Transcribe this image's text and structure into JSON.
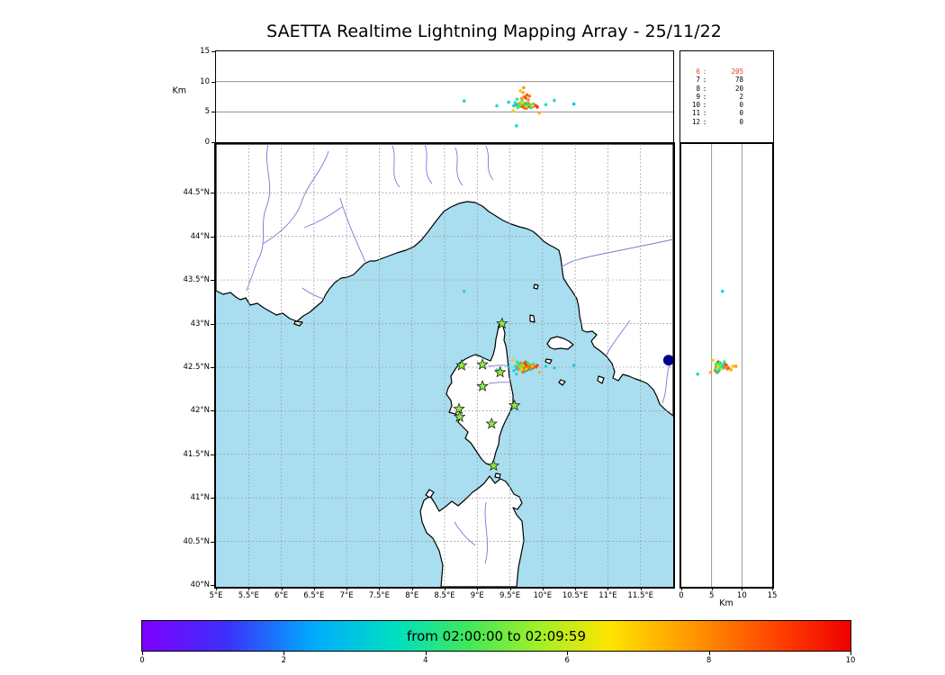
{
  "title": "SAETTA Realtime Lightning Mapping Array - 25/11/22",
  "labels": {
    "altitude_unit": "Km"
  },
  "colors": {
    "sea": "#a9def0",
    "land": "#ffffff",
    "coast": "#000000",
    "river": "#7878d2",
    "grid": "#9a9a9a",
    "alt_grid": "#808080",
    "station_fill": "#8ef03a",
    "station_stroke": "#222222",
    "lake": "#00008b",
    "highlight_red": "#e8402a"
  },
  "chart_data": {
    "type": "scatter",
    "title": "SAETTA Realtime Lightning Mapping Array - 25/11/22",
    "map": {
      "lon_range": [
        5.0,
        12.0
      ],
      "lat_range": [
        39.98,
        45.06
      ],
      "x_ticks": [
        {
          "v": 5,
          "label": "5°E"
        },
        {
          "v": 5.5,
          "label": "5.5°E"
        },
        {
          "v": 6,
          "label": "6°E"
        },
        {
          "v": 6.5,
          "label": "6.5°E"
        },
        {
          "v": 7,
          "label": "7°E"
        },
        {
          "v": 7.5,
          "label": "7.5°E"
        },
        {
          "v": 8,
          "label": "8°E"
        },
        {
          "v": 8.5,
          "label": "8.5°E"
        },
        {
          "v": 9,
          "label": "9°E"
        },
        {
          "v": 9.5,
          "label": "9.5°E"
        },
        {
          "v": 10,
          "label": "10°E"
        },
        {
          "v": 10.5,
          "label": "10.5°E"
        },
        {
          "v": 11,
          "label": "11°E"
        },
        {
          "v": 11.5,
          "label": "11.5°E"
        }
      ],
      "y_ticks": [
        {
          "v": 40,
          "label": "40°N"
        },
        {
          "v": 40.5,
          "label": "40.5°N"
        },
        {
          "v": 41,
          "label": "41°N"
        },
        {
          "v": 41.5,
          "label": "41.5°N"
        },
        {
          "v": 42,
          "label": "42°N"
        },
        {
          "v": 42.5,
          "label": "42.5°N"
        },
        {
          "v": 43,
          "label": "43°N"
        },
        {
          "v": 43.5,
          "label": "43.5°N"
        },
        {
          "v": 44,
          "label": "44°N"
        },
        {
          "v": 44.5,
          "label": "44.5°N"
        }
      ],
      "grid_lons": [
        5.5,
        6,
        6.5,
        7,
        7.5,
        8,
        8.5,
        9,
        9.5,
        10,
        10.5,
        11,
        11.5
      ],
      "grid_lats": [
        40.5,
        41,
        41.5,
        42,
        42.5,
        43,
        43.5,
        44,
        44.5
      ]
    },
    "alt_range": [
      0,
      15
    ],
    "alt_ticks": [
      0,
      5,
      10,
      15
    ],
    "alt_gridlines": [
      5,
      10
    ],
    "stations": [
      [
        9.38,
        43.0
      ],
      [
        8.76,
        42.52
      ],
      [
        9.08,
        42.53
      ],
      [
        9.35,
        42.44
      ],
      [
        9.08,
        42.28
      ],
      [
        8.72,
        42.02
      ],
      [
        9.57,
        42.06
      ],
      [
        9.22,
        41.85
      ],
      [
        8.73,
        41.93
      ],
      [
        9.25,
        41.37
      ]
    ],
    "lake": {
      "lon": 11.93,
      "lat": 42.58
    },
    "points": [
      [
        9.62,
        42.5,
        5.8,
        8.2
      ],
      [
        9.64,
        42.52,
        6.0,
        8.5
      ],
      [
        9.66,
        42.49,
        6.2,
        8.8
      ],
      [
        9.68,
        42.51,
        5.9,
        9.0
      ],
      [
        9.7,
        42.5,
        6.1,
        8.4
      ],
      [
        9.71,
        42.53,
        6.3,
        8.9
      ],
      [
        9.72,
        42.48,
        5.7,
        9.2
      ],
      [
        9.73,
        42.51,
        6.0,
        8.1
      ],
      [
        9.74,
        42.49,
        6.4,
        8.7
      ],
      [
        9.75,
        42.52,
        6.1,
        9.4
      ],
      [
        9.76,
        42.5,
        5.8,
        8.3
      ],
      [
        9.77,
        42.47,
        6.2,
        8.9
      ],
      [
        9.78,
        42.51,
        6.0,
        9.1
      ],
      [
        9.79,
        42.49,
        6.3,
        8.6
      ],
      [
        9.8,
        42.52,
        5.9,
        9.3
      ],
      [
        9.66,
        42.53,
        6.5,
        7.8
      ],
      [
        9.69,
        42.46,
        6.1,
        8.0
      ],
      [
        9.72,
        42.54,
        6.2,
        9.5
      ],
      [
        9.75,
        42.46,
        5.6,
        8.8
      ],
      [
        9.78,
        42.54,
        6.4,
        9.0
      ],
      [
        9.81,
        42.5,
        6.0,
        8.5
      ],
      [
        9.83,
        42.52,
        6.1,
        8.9
      ],
      [
        9.85,
        42.49,
        5.9,
        9.2
      ],
      [
        9.87,
        42.51,
        6.2,
        8.7
      ],
      [
        9.9,
        42.5,
        6.0,
        9.0
      ],
      [
        9.92,
        42.52,
        5.8,
        9.3
      ],
      [
        9.63,
        42.47,
        6.3,
        7.9
      ],
      [
        9.67,
        42.55,
        6.0,
        8.2
      ],
      [
        9.7,
        42.44,
        5.9,
        8.6
      ],
      [
        9.74,
        42.56,
        6.1,
        9.1
      ],
      [
        9.68,
        42.5,
        7.2,
        8.0
      ],
      [
        9.72,
        42.52,
        7.5,
        8.4
      ],
      [
        9.76,
        42.49,
        7.8,
        8.8
      ],
      [
        9.7,
        42.47,
        8.2,
        7.6
      ],
      [
        9.74,
        42.53,
        7.3,
        9.0
      ],
      [
        9.78,
        42.5,
        7.0,
        8.2
      ],
      [
        9.66,
        42.51,
        8.5,
        7.2
      ],
      [
        9.8,
        42.48,
        7.6,
        8.5
      ],
      [
        9.71,
        42.51,
        9.0,
        7.9
      ],
      [
        9.6,
        42.48,
        6.2,
        3.0
      ],
      [
        9.64,
        42.54,
        5.9,
        3.4
      ],
      [
        9.58,
        42.51,
        6.5,
        3.8
      ],
      [
        9.69,
        42.53,
        6.8,
        4.0
      ],
      [
        9.73,
        42.45,
        6.1,
        3.2
      ],
      [
        9.77,
        42.55,
        6.4,
        4.1
      ],
      [
        9.82,
        42.47,
        5.7,
        3.6
      ],
      [
        9.56,
        42.46,
        6.0,
        2.9
      ],
      [
        9.61,
        42.56,
        7.1,
        3.9
      ],
      [
        9.86,
        42.54,
        6.3,
        4.2
      ],
      [
        9.48,
        42.5,
        6.6,
        3.1
      ],
      [
        10.05,
        42.51,
        6.2,
        3.5
      ],
      [
        10.18,
        42.49,
        6.9,
        3.3
      ],
      [
        10.48,
        42.52,
        6.3,
        2.8
      ],
      [
        9.3,
        42.47,
        6.0,
        3.6
      ],
      [
        9.65,
        42.5,
        6.1,
        5.0
      ],
      [
        9.7,
        42.52,
        6.4,
        5.5
      ],
      [
        9.75,
        42.48,
        5.9,
        6.0
      ],
      [
        9.79,
        42.53,
        6.2,
        4.7
      ],
      [
        9.68,
        42.48,
        6.6,
        5.8
      ],
      [
        9.84,
        42.51,
        6.0,
        6.2
      ],
      [
        9.62,
        42.53,
        5.7,
        4.9
      ],
      [
        9.6,
        42.42,
        2.7,
        3.4
      ],
      [
        8.8,
        43.37,
        6.8,
        3.2
      ],
      [
        9.95,
        42.44,
        4.8,
        7.5
      ],
      [
        9.55,
        42.58,
        5.2,
        7.0
      ]
    ],
    "histogram": {
      "rows": [
        {
          "alt": "6",
          "count": "205",
          "highlight": true
        },
        {
          "alt": "7",
          "count": "78",
          "highlight": false
        },
        {
          "alt": "8",
          "count": "20",
          "highlight": false
        },
        {
          "alt": "9",
          "count": "2",
          "highlight": false
        },
        {
          "alt": "10",
          "count": "0",
          "highlight": false
        },
        {
          "alt": "11",
          "count": "0",
          "highlight": false
        },
        {
          "alt": "12",
          "count": "0",
          "highlight": false
        }
      ]
    },
    "colorbar": {
      "label": "from 02:00:00 to 02:09:59",
      "range": [
        0,
        10
      ],
      "ticks": [
        0,
        2,
        4,
        6,
        8,
        10
      ],
      "stops": [
        [
          0,
          "#7f00ff"
        ],
        [
          1.2,
          "#3c30fa"
        ],
        [
          2.4,
          "#00aaff"
        ],
        [
          3.6,
          "#00e0c0"
        ],
        [
          4.6,
          "#40e858"
        ],
        [
          5.6,
          "#a0f028"
        ],
        [
          6.6,
          "#ffe400"
        ],
        [
          7.8,
          "#ff9400"
        ],
        [
          9,
          "#ff4000"
        ],
        [
          10,
          "#ef0000"
        ]
      ]
    }
  }
}
